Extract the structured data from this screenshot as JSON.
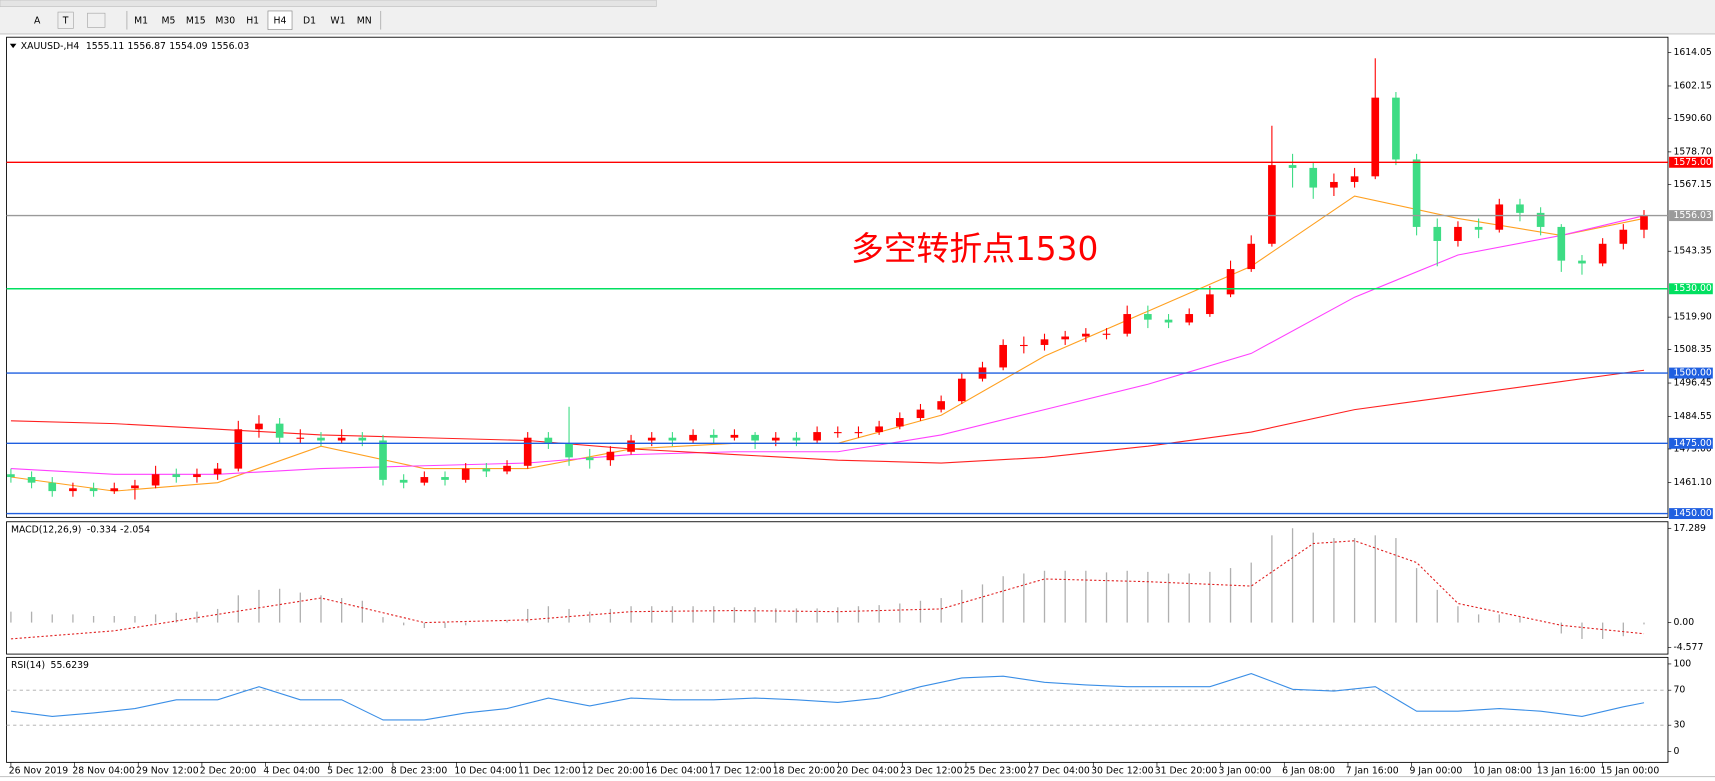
{
  "toolbar": {
    "tools": [
      "A",
      "T"
    ],
    "timeframes": [
      {
        "label": "M1",
        "active": false
      },
      {
        "label": "M5",
        "active": false
      },
      {
        "label": "M15",
        "active": false
      },
      {
        "label": "M30",
        "active": false
      },
      {
        "label": "H1",
        "active": false
      },
      {
        "label": "H4",
        "active": true
      },
      {
        "label": "D1",
        "active": false
      },
      {
        "label": "W1",
        "active": false
      },
      {
        "label": "MN",
        "active": false
      }
    ]
  },
  "chart_data": [
    {
      "type": "candlestick",
      "title": "XAUUSD-,H4",
      "ohlc": [
        1555.11,
        1556.87,
        1554.09,
        1556.03
      ],
      "annotation": "多空转折点1530",
      "annotation_color": "#ff0000",
      "up_color": "#ff0000",
      "down_color": "#3ddc84",
      "xlim": [
        -0.21,
        80.16
      ],
      "xticks": [
        {
          "value": 0,
          "label": "26 Nov 2019"
        },
        {
          "value": 3.08,
          "label": "28 Nov 04:00"
        },
        {
          "value": 6.16,
          "label": "29 Nov 12:00"
        },
        {
          "value": 9.24,
          "label": "2 Dec 20:00"
        },
        {
          "value": 12.32,
          "label": "4 Dec 04:00"
        },
        {
          "value": 15.4,
          "label": "5 Dec 12:00"
        },
        {
          "value": 18.48,
          "label": "8 Dec 23:00"
        },
        {
          "value": 21.56,
          "label": "10 Dec 04:00"
        },
        {
          "value": 24.64,
          "label": "11 Dec 12:00"
        },
        {
          "value": 27.72,
          "label": "12 Dec 20:00"
        },
        {
          "value": 30.8,
          "label": "16 Dec 04:00"
        },
        {
          "value": 33.88,
          "label": "17 Dec 12:00"
        },
        {
          "value": 36.96,
          "label": "18 Dec 20:00"
        },
        {
          "value": 40.04,
          "label": "20 Dec 04:00"
        },
        {
          "value": 43.12,
          "label": "23 Dec 12:00"
        },
        {
          "value": 46.2,
          "label": "25 Dec 23:00"
        },
        {
          "value": 49.28,
          "label": "27 Dec 04:00"
        },
        {
          "value": 52.36,
          "label": "30 Dec 12:00"
        },
        {
          "value": 55.44,
          "label": "31 Dec 20:00"
        },
        {
          "value": 58.52,
          "label": "3 Jan 00:00"
        },
        {
          "value": 61.6,
          "label": "6 Jan 08:00"
        },
        {
          "value": 64.68,
          "label": "7 Jan 16:00"
        },
        {
          "value": 67.76,
          "label": "9 Jan 00:00"
        },
        {
          "value": 70.84,
          "label": "10 Jan 08:00"
        },
        {
          "value": 73.92,
          "label": "13 Jan 16:00"
        },
        {
          "value": 77,
          "label": "15 Jan 00:00"
        }
      ],
      "ylim": [
        1448.65,
        1619.5
      ],
      "yticks": [
        1614.05,
        1602.15,
        {
          "value": 1590.6,
          "label": "1590.60"
        },
        {
          "value": 1578.7,
          "label": "1578.70"
        },
        1567.15,
        1543.35,
        {
          "value": 1519.9,
          "label": "1519.90"
        },
        1508.35,
        1496.45,
        1484.55,
        {
          "value": 1473,
          "label": "1473.00"
        },
        {
          "value": 1461.1,
          "label": "1461.10"
        }
      ],
      "levels": [
        {
          "value": 1575,
          "label": "1575.00",
          "color": "#ff0000"
        },
        {
          "value": 1556.03,
          "label": "1556.03",
          "color": "#9a9a9a"
        },
        {
          "value": 1530,
          "label": "1530.00",
          "color": "#00e060"
        },
        {
          "value": 1500,
          "label": "1500.00",
          "color": "#1f5fe0"
        },
        {
          "value": 1475,
          "label": "1475.00",
          "color": "#1f5fe0"
        },
        {
          "value": 1450,
          "label": "1450.00",
          "color": "#1f5fe0"
        }
      ],
      "candles": [
        [
          1464,
          1466,
          1461,
          1463
        ],
        [
          1463,
          1465,
          1459,
          1461
        ],
        [
          1461,
          1463,
          1456,
          1458
        ],
        [
          1458,
          1461,
          1456,
          1459
        ],
        [
          1459,
          1461,
          1456,
          1458
        ],
        [
          1458,
          1461,
          1457,
          1459
        ],
        [
          1459,
          1462,
          1455,
          1460
        ],
        [
          1460,
          1467,
          1459,
          1464
        ],
        [
          1464,
          1466,
          1461,
          1463
        ],
        [
          1463,
          1466,
          1461,
          1464
        ],
        [
          1464,
          1468,
          1462,
          1466
        ],
        [
          1466,
          1483,
          1465,
          1480
        ],
        [
          1480,
          1485,
          1477,
          1482
        ],
        [
          1482,
          1484,
          1475,
          1477
        ],
        [
          1477,
          1480,
          1475,
          1477
        ],
        [
          1477,
          1479,
          1474,
          1476
        ],
        [
          1476,
          1480,
          1475,
          1477
        ],
        [
          1477,
          1479,
          1474,
          1476
        ],
        [
          1476,
          1478,
          1460,
          1462
        ],
        [
          1462,
          1464,
          1459,
          1461
        ],
        [
          1461,
          1465,
          1460,
          1463
        ],
        [
          1463,
          1465,
          1460,
          1462
        ],
        [
          1462,
          1468,
          1461,
          1466
        ],
        [
          1466,
          1468,
          1463,
          1465
        ],
        [
          1465,
          1469,
          1464,
          1467
        ],
        [
          1467,
          1479,
          1466,
          1477
        ],
        [
          1477,
          1479,
          1473,
          1475
        ],
        [
          1475,
          1488,
          1467,
          1470
        ],
        [
          1470,
          1473,
          1466,
          1469
        ],
        [
          1469,
          1474,
          1467,
          1472
        ],
        [
          1472,
          1478,
          1471,
          1476
        ],
        [
          1476,
          1479,
          1474,
          1477
        ],
        [
          1477,
          1479,
          1474,
          1476
        ],
        [
          1476,
          1480,
          1475,
          1478
        ],
        [
          1478,
          1480,
          1475,
          1477
        ],
        [
          1477,
          1480,
          1476,
          1478
        ],
        [
          1478,
          1479,
          1473,
          1476
        ],
        [
          1476,
          1479,
          1474,
          1477
        ],
        [
          1477,
          1479,
          1474,
          1476
        ],
        [
          1476,
          1481,
          1475,
          1479
        ],
        [
          1479,
          1481,
          1477,
          1479
        ],
        [
          1479,
          1481,
          1477,
          1479
        ],
        [
          1479,
          1483,
          1478,
          1481
        ],
        [
          1481,
          1486,
          1480,
          1484
        ],
        [
          1484,
          1489,
          1483,
          1487
        ],
        [
          1487,
          1492,
          1486,
          1490
        ],
        [
          1490,
          1500,
          1489,
          1498
        ],
        [
          1498,
          1504,
          1497,
          1502
        ],
        [
          1502,
          1512,
          1501,
          1510
        ],
        [
          1510,
          1513,
          1507,
          1510
        ],
        [
          1510,
          1514,
          1508,
          1512
        ],
        [
          1512,
          1515,
          1510,
          1513
        ],
        [
          1513,
          1516,
          1511,
          1514
        ],
        [
          1514,
          1516,
          1512,
          1514
        ],
        [
          1514,
          1524,
          1513,
          1521
        ],
        [
          1521,
          1524,
          1516,
          1519
        ],
        [
          1519,
          1521,
          1516,
          1518
        ],
        [
          1518,
          1523,
          1517,
          1521
        ],
        [
          1521,
          1531,
          1520,
          1528
        ],
        [
          1528,
          1540,
          1527,
          1537
        ],
        [
          1537,
          1549,
          1536,
          1546
        ],
        [
          1546,
          1588,
          1545,
          1574
        ],
        [
          1574,
          1578,
          1566,
          1573
        ],
        [
          1573,
          1575,
          1562,
          1566
        ],
        [
          1566,
          1571,
          1563,
          1568
        ],
        [
          1568,
          1573,
          1566,
          1570
        ],
        [
          1570,
          1612,
          1569,
          1598
        ],
        [
          1598,
          1600,
          1574,
          1576
        ],
        [
          1576,
          1578,
          1549,
          1552
        ],
        [
          1552,
          1555,
          1538,
          1547
        ],
        [
          1547,
          1554,
          1545,
          1552
        ],
        [
          1552,
          1555,
          1548,
          1551
        ],
        [
          1551,
          1562,
          1550,
          1560
        ],
        [
          1560,
          1562,
          1554,
          1557
        ],
        [
          1557,
          1559,
          1549,
          1552
        ],
        [
          1552,
          1553,
          1536,
          1540
        ],
        [
          1540,
          1542,
          1535,
          1539
        ],
        [
          1539,
          1548,
          1538,
          1546
        ],
        [
          1546,
          1553,
          1544,
          1551
        ],
        [
          1551,
          1558,
          1548,
          1556.03
        ]
      ],
      "series": [
        {
          "color": "#ffa020",
          "x": [
            0,
            5,
            10,
            15,
            20,
            25,
            30,
            35,
            40,
            45,
            50,
            55,
            60,
            65,
            70,
            75,
            79
          ],
          "values": [
            1463,
            1458,
            1461,
            1474,
            1466,
            1466,
            1473,
            1475,
            1475,
            1485,
            1506,
            1522,
            1538,
            1563,
            1555,
            1549,
            1555
          ]
        },
        {
          "color": "#ff40ff",
          "x": [
            0,
            5,
            10,
            15,
            20,
            25,
            30,
            35,
            40,
            45,
            50,
            55,
            60,
            65,
            70,
            75,
            79
          ],
          "values": [
            1466,
            1464,
            1464,
            1466,
            1467,
            1468,
            1471,
            1472,
            1472,
            1478,
            1487,
            1496,
            1507,
            1527,
            1542,
            1549,
            1556
          ]
        },
        {
          "color": "#ff2020",
          "x": [
            0,
            5,
            10,
            15,
            20,
            25,
            30,
            35,
            40,
            45,
            50,
            55,
            60,
            65,
            70,
            75,
            79
          ],
          "values": [
            1483,
            1482,
            1480,
            1478,
            1477,
            1476,
            1473,
            1471,
            1469,
            1468,
            1470,
            1474,
            1479,
            1487,
            1492,
            1497,
            1501
          ]
        }
      ]
    },
    {
      "type": "macd",
      "title": "MACD(12,26,9)",
      "readout": [
        -0.334,
        -2.054
      ],
      "ylim": [
        -5.58,
        18.29
      ],
      "yticks": [
        17.289,
        {
          "value": 0,
          "label": "0.00"
        },
        -4.577
      ],
      "color": "#b0b0b0",
      "values": [
        2,
        2,
        1.5,
        1.5,
        1.2,
        1.2,
        1.2,
        1.5,
        1.8,
        2,
        2.5,
        5,
        6,
        6.2,
        5.5,
        5,
        4.5,
        4,
        1,
        -0.5,
        -1,
        -1,
        -0.5,
        0,
        0.5,
        2.5,
        3,
        2.5,
        2,
        2.5,
        3,
        3,
        3,
        3,
        3,
        2.8,
        2.8,
        2.6,
        2.6,
        2.6,
        2.8,
        3,
        3.2,
        3.5,
        4,
        4.5,
        6,
        7,
        8.5,
        9,
        9.5,
        9.5,
        9.5,
        9.2,
        9.5,
        9.3,
        9,
        9,
        9.3,
        10,
        11,
        16,
        17.3,
        16.5,
        15.5,
        15.5,
        16,
        15.5,
        10,
        6,
        3,
        1.5,
        1.5,
        1,
        0,
        -2,
        -3,
        -3,
        -2.5,
        -0.334
      ],
      "signal": {
        "color": "#e02020",
        "x": [
          0,
          5,
          10,
          15,
          20,
          25,
          30,
          35,
          40,
          45,
          50,
          55,
          60,
          63,
          65,
          68,
          70,
          75,
          79
        ],
        "values": [
          -3,
          -1.5,
          1.5,
          4.5,
          0,
          0.5,
          2,
          2.2,
          2,
          2.5,
          8,
          7.5,
          6.7,
          14.5,
          15,
          11,
          3.5,
          -0.5,
          -2.054
        ]
      }
    },
    {
      "type": "line",
      "title": "RSI(14)",
      "readout": 55.6239,
      "ylim": [
        -12.5,
        106.25
      ],
      "yticks": [
        100,
        70,
        30,
        0
      ],
      "levels": [
        70,
        30
      ],
      "color": "#3a8ee6",
      "x": [
        0,
        2,
        4,
        6,
        8,
        10,
        12,
        14,
        16,
        18,
        20,
        22,
        24,
        26,
        28,
        30,
        32,
        34,
        36,
        38,
        40,
        42,
        44,
        46,
        48,
        50,
        52,
        54,
        56,
        58,
        60,
        62,
        64,
        66,
        68,
        70,
        72,
        74,
        76,
        78,
        79
      ],
      "values": [
        46,
        40,
        44,
        49,
        59,
        59,
        74,
        59,
        59,
        36,
        36,
        44,
        49,
        61,
        52,
        61,
        59,
        59,
        61,
        59,
        56,
        61,
        74,
        84,
        86,
        79,
        76,
        74,
        74,
        74,
        89,
        71,
        69,
        74,
        46,
        46,
        49,
        46,
        40,
        51,
        55.6239
      ]
    }
  ]
}
